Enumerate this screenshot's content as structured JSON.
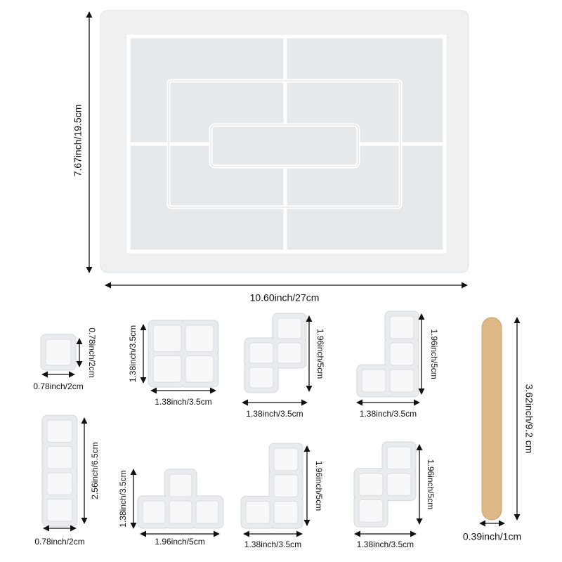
{
  "tray": {
    "height_label": "7.67inch/19.5cm",
    "width_label": "10.60inch/27cm"
  },
  "pieces": [
    {
      "height": "0.78inch/2cm",
      "width": "0.78inch/2cm"
    },
    {
      "height": "1.38inch/3.5cm",
      "width": "1.38inch/3.5cm"
    },
    {
      "height": "1.96inch/5cm",
      "width": "1.38inch/3.5cm"
    },
    {
      "height": "1.96inch/5cm",
      "width": "1.38inch/3.5cm"
    },
    {
      "height": "3.62inch/9.2 cm",
      "width": "0.39inch/1cm"
    },
    {
      "height": "2.56inch/6.5cm",
      "width": "0.78inch/2cm"
    },
    {
      "height": "1.38inch/3.5cm",
      "width": "1.96inch/5cm"
    },
    {
      "height": "1.96inch/5cm",
      "width": "1.38inch/3.5cm"
    },
    {
      "height": "1.96inch/5cm",
      "width": "1.38inch/3.5cm"
    }
  ]
}
